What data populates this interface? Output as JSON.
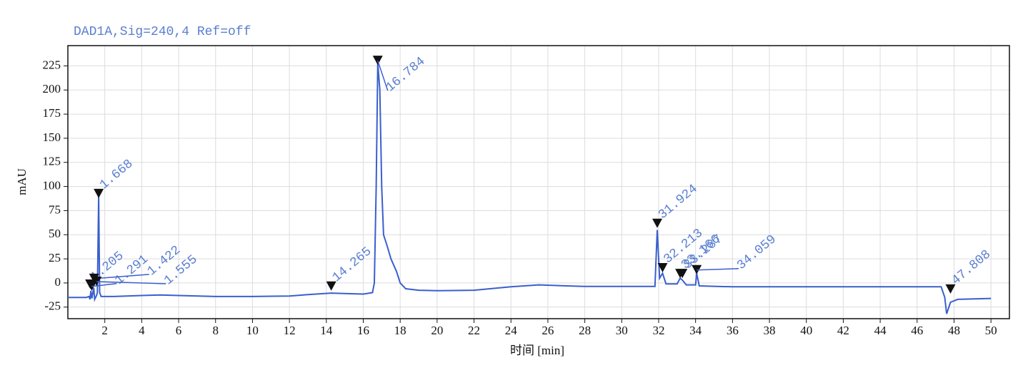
{
  "chart_data": {
    "type": "line",
    "title": "DAD1A,Sig=240,4  Ref=off",
    "xlabel": "时间 [min]",
    "ylabel": "mAU",
    "color": "#3a5fcd",
    "grid": true,
    "xlim": [
      0,
      51
    ],
    "ylim": [
      -37,
      246
    ],
    "xticks": [
      2,
      4,
      6,
      8,
      10,
      12,
      14,
      16,
      18,
      20,
      22,
      24,
      26,
      28,
      30,
      32,
      34,
      36,
      38,
      40,
      42,
      44,
      46,
      48,
      50
    ],
    "yticks": [
      -25,
      0,
      25,
      50,
      75,
      100,
      125,
      150,
      175,
      200,
      225
    ],
    "x": [
      0,
      1.0,
      1.15,
      1.2,
      1.25,
      1.3,
      1.4,
      1.45,
      1.55,
      1.6,
      1.668,
      1.72,
      1.8,
      2.5,
      4,
      5,
      6,
      8,
      10,
      12,
      13,
      14.265,
      15,
      16,
      16.5,
      16.6,
      16.7,
      16.784,
      16.9,
      17.0,
      17.1,
      17.3,
      17.5,
      17.8,
      18,
      18.3,
      19,
      20,
      22,
      24,
      25.5,
      27,
      28,
      30,
      31.8,
      31.924,
      32.05,
      32.213,
      32.4,
      33,
      33.166,
      33.287,
      33.5,
      34,
      34.059,
      34.2,
      36,
      40,
      44,
      47.3,
      47.5,
      47.6,
      47.808,
      48.2,
      50
    ],
    "y": [
      -15,
      -15,
      -14,
      -17,
      -8,
      -16,
      -5,
      -17,
      -13,
      -10,
      90,
      -10,
      -14,
      -14,
      -13,
      -12.5,
      -13,
      -14,
      -14,
      -13.5,
      -12,
      -10.5,
      -11,
      -11.5,
      -10,
      0,
      100,
      228,
      200,
      100,
      50,
      38,
      25,
      12,
      0,
      -6,
      -7.5,
      -8,
      -7.5,
      -4,
      -2,
      -3,
      -3.5,
      -3.5,
      -3.5,
      55,
      5,
      10,
      -1,
      -1,
      5,
      3,
      -2,
      -2,
      10,
      -3,
      -4,
      -4,
      -4,
      -4,
      -15,
      -32,
      -20,
      -17,
      -16
    ],
    "peaks": [
      {
        "x": 1.205,
        "y": -6
      },
      {
        "x": 1.291,
        "y": -8
      },
      {
        "x": 1.422,
        "y": 0
      },
      {
        "x": 1.555,
        "y": -3
      },
      {
        "x": 1.668,
        "y": 88
      },
      {
        "x": 14.265,
        "y": -8
      },
      {
        "x": 16.784,
        "y": 226
      },
      {
        "x": 31.924,
        "y": 57
      },
      {
        "x": 32.213,
        "y": 11
      },
      {
        "x": 33.166,
        "y": 5
      },
      {
        "x": 33.287,
        "y": 5
      },
      {
        "x": 34.059,
        "y": 9
      },
      {
        "x": 47.808,
        "y": -11
      }
    ]
  }
}
